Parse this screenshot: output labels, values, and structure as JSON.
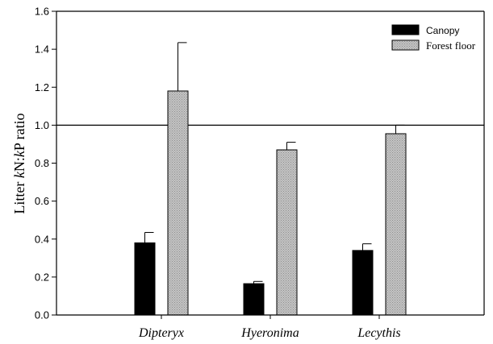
{
  "chart_data": {
    "type": "bar",
    "categories": [
      "Dipteryx",
      "Hyeronima",
      "Lecythis"
    ],
    "ylabel_parts": [
      "Litter ",
      "k",
      "N:",
      "k",
      "P ratio"
    ],
    "ylim": [
      0,
      1.6
    ],
    "yticks": [
      "0.0",
      "0.2",
      "0.4",
      "0.6",
      "0.8",
      "1.0",
      "1.2",
      "1.4",
      "1.6"
    ],
    "reference_line": 1.0,
    "legend_position": "top-right",
    "series": [
      {
        "name": "Canopy",
        "color": "#000000",
        "values": [
          0.38,
          0.165,
          0.34
        ],
        "errors": [
          0.055,
          0.012,
          0.035
        ]
      },
      {
        "name": "Forest floor",
        "color": "#bdbdbd",
        "values": [
          1.18,
          0.87,
          0.955
        ],
        "errors": [
          0.255,
          0.04,
          0.045
        ]
      }
    ]
  }
}
